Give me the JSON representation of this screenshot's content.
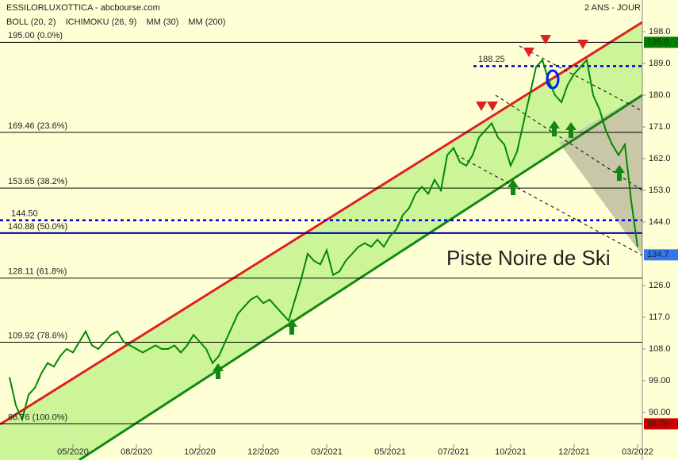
{
  "chart_data": {
    "type": "line",
    "title": "ESSILORLUXOTTICA - abcbourse.com",
    "period": "2 ANS - JOUR",
    "indicators": [
      {
        "name": "BOLL (20, 2)",
        "color": "#3333cc"
      },
      {
        "name": "ICHIMOKU (26, 9)",
        "color": "#0000cc"
      },
      {
        "name": "MM (30)",
        "color": "#0000cc"
      },
      {
        "name": "MM (200)",
        "color": "#cc0000"
      }
    ],
    "annotation": "Piste Noire de Ski",
    "ylim": [
      81,
      207
    ],
    "yticks": [
      {
        "value": 198,
        "label": "198.0"
      },
      {
        "value": 189,
        "label": "189.0"
      },
      {
        "value": 180,
        "label": "180.0"
      },
      {
        "value": 171,
        "label": "171.0"
      },
      {
        "value": 162,
        "label": "162.0"
      },
      {
        "value": 153,
        "label": "153.0"
      },
      {
        "value": 144,
        "label": "144.0"
      },
      {
        "value": 126,
        "label": "126.0"
      },
      {
        "value": 117,
        "label": "117.0"
      },
      {
        "value": 108,
        "label": "108.0"
      },
      {
        "value": 99,
        "label": "99.00"
      },
      {
        "value": 90,
        "label": "90.00"
      }
    ],
    "fib_levels": [
      {
        "value": 195.0,
        "label": "195.00  (0.0%)",
        "color": "#000000"
      },
      {
        "value": 169.46,
        "label": "169.46  (23.6%)",
        "color": "#000000"
      },
      {
        "value": 153.65,
        "label": "153.65  (38.2%)",
        "color": "#000000"
      },
      {
        "value": 140.88,
        "label": "140.88  (50.0%)",
        "color": "#0000aa"
      },
      {
        "value": 128.11,
        "label": "128.11  (61.8%)",
        "color": "#000000"
      },
      {
        "value": 109.92,
        "label": "109.92  (78.6%)",
        "color": "#000000"
      },
      {
        "value": 86.76,
        "label": "86.76  (100.0%)",
        "color": "#000000"
      }
    ],
    "hlines": [
      {
        "value": 188.25,
        "label": "188.25",
        "color": "#0000dd"
      },
      {
        "value": 144.5,
        "label": "144.50",
        "color": "#0000dd"
      }
    ],
    "price_tags": [
      {
        "value": 195.0,
        "label": "195.0",
        "color": "#008000"
      },
      {
        "value": 134.7,
        "label": "134.7",
        "color": "#3377ee"
      },
      {
        "value": 86.76,
        "label": "86.76",
        "color": "#cc0000"
      }
    ],
    "categories": [
      null,
      null,
      null,
      null,
      null,
      null,
      null,
      null,
      null,
      null,
      "05/2020",
      null,
      null,
      null,
      null,
      null,
      null,
      null,
      null,
      null,
      "08/2020",
      null,
      null,
      null,
      null,
      null,
      null,
      null,
      null,
      null,
      "10/2020",
      null,
      null,
      null,
      null,
      null,
      null,
      null,
      null,
      null,
      "12/2020",
      null,
      null,
      null,
      null,
      null,
      null,
      null,
      null,
      null,
      "03/2021",
      null,
      null,
      null,
      null,
      null,
      null,
      null,
      null,
      null,
      "05/2021",
      null,
      null,
      null,
      null,
      null,
      null,
      null,
      null,
      null,
      "07/2021",
      null,
      null,
      null,
      null,
      null,
      null,
      null,
      null,
      "10/2021",
      null,
      null,
      null,
      null,
      null,
      null,
      null,
      null,
      null,
      "12/2021",
      null,
      null,
      null,
      null,
      null,
      null,
      null,
      null,
      null,
      "03/2022"
    ],
    "series": [
      {
        "name": "ESSILORLUXOTTICA",
        "color": "#008800",
        "values": [
          100,
          92,
          88,
          95,
          97,
          101,
          104,
          103,
          106,
          108,
          107,
          110,
          113,
          109,
          108,
          110,
          112,
          113,
          110,
          109,
          108,
          107,
          108,
          109,
          108,
          108,
          109,
          107,
          109,
          112,
          110,
          108,
          104,
          106,
          110,
          114,
          118,
          120,
          122,
          123,
          121,
          122,
          120,
          118,
          116,
          122,
          128,
          135,
          133,
          132,
          136,
          129,
          130,
          133,
          135,
          137,
          138,
          137,
          139,
          137,
          140,
          142,
          146,
          148,
          152,
          154,
          152,
          156,
          153,
          163,
          165,
          161,
          160,
          163,
          168,
          170,
          172,
          168,
          166,
          160,
          164,
          172,
          180,
          188,
          190,
          184,
          180,
          178,
          183,
          186,
          188,
          190,
          180,
          176,
          170,
          166,
          163,
          166,
          150,
          137
        ]
      }
    ]
  }
}
